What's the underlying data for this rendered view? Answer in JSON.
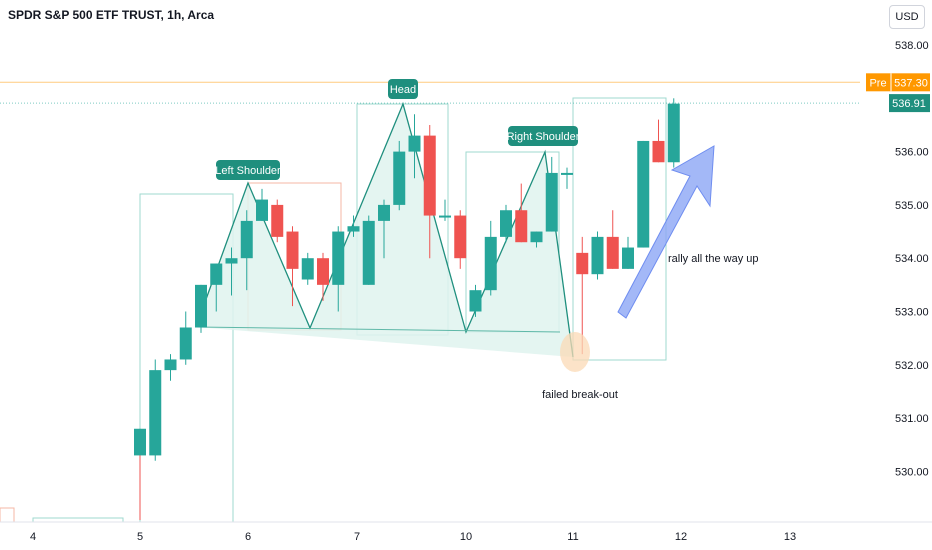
{
  "header": {
    "symbol_title": "SPDR S&P 500 ETF TRUST, 1h, Arca",
    "currency": "USD"
  },
  "price_tags": {
    "pre_label": "Pre",
    "pre_value": "537.30",
    "last_value": "536.91"
  },
  "colors": {
    "up": "#26a69a",
    "down": "#ef5350",
    "pattern_fill": "#dff3ef",
    "label_bg": "#1f8f7e",
    "pre_tag": "#ff9800",
    "arrow": "#8ca6f5"
  },
  "chart_data": {
    "type": "candlestick",
    "title": "SPDR S&P 500 ETF TRUST, 1h, Arca",
    "x_tick_labels": [
      "4",
      "5",
      "6",
      "7",
      "10",
      "11",
      "12",
      "13"
    ],
    "y_tick_labels": [
      "538.00",
      "537.00",
      "536.00",
      "535.00",
      "534.00",
      "533.00",
      "532.00",
      "531.00",
      "530.00"
    ],
    "ylim": [
      529.0,
      538.8
    ],
    "candles": [
      {
        "open": 530.3,
        "high": 530.8,
        "low": 529.1,
        "close": 530.8
      },
      {
        "open": 530.3,
        "high": 532.1,
        "low": 530.2,
        "close": 531.9
      },
      {
        "open": 531.9,
        "high": 532.2,
        "low": 531.7,
        "close": 532.1
      },
      {
        "open": 532.1,
        "high": 533.0,
        "low": 532.0,
        "close": 532.7
      },
      {
        "open": 532.7,
        "high": 533.5,
        "low": 532.6,
        "close": 533.5
      },
      {
        "open": 533.5,
        "high": 533.9,
        "low": 533.0,
        "close": 533.9
      },
      {
        "open": 533.9,
        "high": 534.2,
        "low": 533.3,
        "close": 534.0
      },
      {
        "open": 534.0,
        "high": 534.9,
        "low": 533.4,
        "close": 534.7
      },
      {
        "open": 534.7,
        "high": 535.3,
        "low": 534.7,
        "close": 535.1
      },
      {
        "open": 535.0,
        "high": 535.1,
        "low": 534.3,
        "close": 534.4
      },
      {
        "open": 534.5,
        "high": 534.6,
        "low": 533.1,
        "close": 533.8
      },
      {
        "open": 533.6,
        "high": 534.1,
        "low": 533.5,
        "close": 534.0
      },
      {
        "open": 534.0,
        "high": 534.1,
        "low": 533.2,
        "close": 533.5
      },
      {
        "open": 533.5,
        "high": 534.6,
        "low": 533.0,
        "close": 534.5
      },
      {
        "open": 534.5,
        "high": 534.8,
        "low": 534.4,
        "close": 534.6
      },
      {
        "open": 533.5,
        "high": 534.8,
        "low": 533.5,
        "close": 534.7
      },
      {
        "open": 534.7,
        "high": 535.1,
        "low": 534.0,
        "close": 535.0
      },
      {
        "open": 535.0,
        "high": 536.2,
        "low": 534.9,
        "close": 536.0
      },
      {
        "open": 536.0,
        "high": 536.7,
        "low": 535.5,
        "close": 536.3
      },
      {
        "open": 536.3,
        "high": 536.5,
        "low": 534.0,
        "close": 534.8
      },
      {
        "open": 534.8,
        "high": 535.1,
        "low": 534.7,
        "close": 534.8
      },
      {
        "open": 534.8,
        "high": 534.9,
        "low": 533.8,
        "close": 534.0
      },
      {
        "open": 533.0,
        "high": 533.5,
        "low": 532.9,
        "close": 533.4
      },
      {
        "open": 533.4,
        "high": 534.7,
        "low": 533.3,
        "close": 534.4
      },
      {
        "open": 534.4,
        "high": 535.0,
        "low": 534.3,
        "close": 534.9
      },
      {
        "open": 534.9,
        "high": 535.4,
        "low": 534.3,
        "close": 534.3
      },
      {
        "open": 534.3,
        "high": 534.5,
        "low": 534.2,
        "close": 534.5
      },
      {
        "open": 534.5,
        "high": 535.9,
        "low": 534.5,
        "close": 535.6
      },
      {
        "open": 535.6,
        "high": 535.7,
        "low": 535.3,
        "close": 535.6
      },
      {
        "open": 534.1,
        "high": 534.4,
        "low": 532.2,
        "close": 533.7
      },
      {
        "open": 533.7,
        "high": 534.5,
        "low": 533.6,
        "close": 534.4
      },
      {
        "open": 534.4,
        "high": 534.9,
        "low": 533.8,
        "close": 533.8
      },
      {
        "open": 533.8,
        "high": 534.4,
        "low": 533.8,
        "close": 534.2
      },
      {
        "open": 534.2,
        "high": 536.2,
        "low": 534.2,
        "close": 536.2
      },
      {
        "open": 536.2,
        "high": 536.6,
        "low": 535.8,
        "close": 535.8
      },
      {
        "open": 535.8,
        "high": 537.0,
        "low": 535.7,
        "close": 536.9
      }
    ],
    "last_price": 536.91,
    "pre_market_price": 537.3,
    "annotations": [
      "Left Shoulder",
      "Head",
      "Right Shoulder",
      "failed break-out",
      "rally all the way up"
    ],
    "legend": "none",
    "grid": false
  }
}
